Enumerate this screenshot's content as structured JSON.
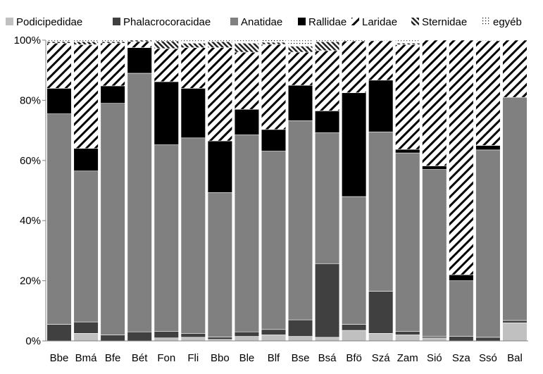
{
  "chart_data": {
    "type": "bar",
    "stacked": true,
    "percent": true,
    "categories": [
      "Bbe",
      "Bmá",
      "Bfe",
      "Bét",
      "Fon",
      "Fli",
      "Bbo",
      "Ble",
      "Blf",
      "Bse",
      "Bsá",
      "Bfö",
      "Szá",
      "Zam",
      "Sió",
      "Sza",
      "Ssó",
      "Bal"
    ],
    "y_ticks": [
      "0%",
      "20%",
      "40%",
      "60%",
      "80%",
      "100%"
    ],
    "ylim": [
      0,
      100
    ],
    "grid": false,
    "legend_position": "top",
    "series": [
      {
        "name": "Podicipedidae",
        "color": "#c0c0c0",
        "pattern": "solid",
        "values": [
          0.0,
          2.5,
          0.0,
          0.0,
          1.0,
          1.2,
          0.5,
          1.5,
          2.0,
          1.5,
          1.2,
          3.5,
          2.5,
          2.0,
          1.0,
          0.0,
          0.0,
          6.0
        ]
      },
      {
        "name": "Phalacrocoracidae",
        "color": "#404040",
        "pattern": "solid",
        "values": [
          5.5,
          3.8,
          2.0,
          3.0,
          2.2,
          1.3,
          0.8,
          1.5,
          1.8,
          5.5,
          24.5,
          2.0,
          14.0,
          1.2,
          0.5,
          1.5,
          1.2,
          0.8
        ]
      },
      {
        "name": "Anatidae",
        "color": "#808080",
        "pattern": "solid",
        "values": [
          70.0,
          50.2,
          77.0,
          86.0,
          62.0,
          65.0,
          48.0,
          65.5,
          59.3,
          66.2,
          43.5,
          42.5,
          53.0,
          59.3,
          55.5,
          18.5,
          62.3,
          74.2
        ]
      },
      {
        "name": "Rallidae",
        "color": "#000000",
        "pattern": "solid",
        "values": [
          8.5,
          7.5,
          5.8,
          8.5,
          21.0,
          16.5,
          17.2,
          8.5,
          7.2,
          11.8,
          7.3,
          34.5,
          17.2,
          1.2,
          1.2,
          2.0,
          1.5,
          0.0
        ]
      },
      {
        "name": "Laridae",
        "color": "#000000",
        "pattern": "wide-hatch",
        "values": [
          15.0,
          34.5,
          14.2,
          2.0,
          11.0,
          13.5,
          31.0,
          19.0,
          28.3,
          11.0,
          20.0,
          17.2,
          13.1,
          34.8,
          41.8,
          78.0,
          34.8,
          19.0
        ]
      },
      {
        "name": "Sternidae",
        "color": "#000000",
        "pattern": "dense-hatch",
        "values": [
          0.5,
          1.0,
          0.5,
          0.5,
          2.5,
          1.5,
          2.0,
          3.0,
          0.7,
          2.0,
          3.0,
          0.0,
          0.0,
          0.5,
          0.0,
          0.0,
          0.0,
          0.0
        ]
      },
      {
        "name": "egyéb",
        "color": "#ffffff",
        "pattern": "dots",
        "values": [
          0.5,
          0.5,
          0.5,
          0.0,
          0.3,
          1.0,
          0.5,
          1.0,
          1.0,
          2.0,
          0.5,
          0.3,
          0.2,
          1.0,
          0.0,
          0.0,
          0.2,
          0.0
        ]
      }
    ]
  }
}
